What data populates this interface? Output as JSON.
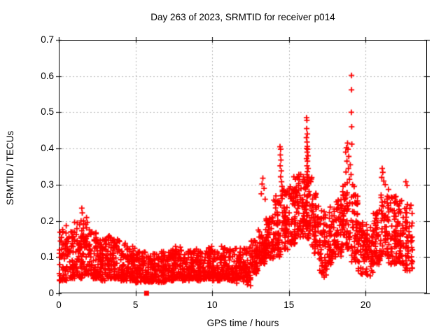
{
  "window": {
    "background": "#ffffff"
  },
  "chart_data": {
    "type": "scatter",
    "title": "Day 263 of 2023, SRMTID for receiver p014",
    "xlabel": "GPS time / hours",
    "ylabel": "SRMTID / TECUs",
    "xlim": [
      0,
      24
    ],
    "ylim": [
      0,
      0.7
    ],
    "xticks": [
      {
        "v": 0,
        "label": "0"
      },
      {
        "v": 5,
        "label": "5"
      },
      {
        "v": 10,
        "label": "10"
      },
      {
        "v": 15,
        "label": "15"
      },
      {
        "v": 20,
        "label": "20"
      }
    ],
    "yticks": [
      {
        "v": 0.0,
        "label": "0"
      },
      {
        "v": 0.1,
        "label": "0.1"
      },
      {
        "v": 0.2,
        "label": "0.2"
      },
      {
        "v": 0.3,
        "label": "0.3"
      },
      {
        "v": 0.4,
        "label": "0.4"
      },
      {
        "v": 0.5,
        "label": "0.5"
      },
      {
        "v": 0.6,
        "label": "0.6"
      },
      {
        "v": 0.7,
        "label": "0.7"
      }
    ],
    "grid": true,
    "grid_color": "#b4b4b4",
    "legend": "none",
    "marker": "plus",
    "marker_color": "#ff0000",
    "render_seed": 20230263,
    "bands": [
      {
        "t0": 0.0,
        "t1": 0.5,
        "lo": 0.035,
        "hi": 0.19,
        "n": 55
      },
      {
        "t0": 0.5,
        "t1": 1.0,
        "lo": 0.04,
        "hi": 0.17,
        "n": 55
      },
      {
        "t0": 1.0,
        "t1": 1.5,
        "lo": 0.04,
        "hi": 0.2,
        "n": 55
      },
      {
        "t0": 1.5,
        "t1": 2.0,
        "lo": 0.05,
        "hi": 0.21,
        "n": 55
      },
      {
        "t0": 2.0,
        "t1": 2.5,
        "lo": 0.04,
        "hi": 0.17,
        "n": 55
      },
      {
        "t0": 2.5,
        "t1": 3.0,
        "lo": 0.035,
        "hi": 0.15,
        "n": 55
      },
      {
        "t0": 3.0,
        "t1": 3.5,
        "lo": 0.04,
        "hi": 0.16,
        "n": 55
      },
      {
        "t0": 3.5,
        "t1": 4.0,
        "lo": 0.04,
        "hi": 0.15,
        "n": 55
      },
      {
        "t0": 4.0,
        "t1": 4.5,
        "lo": 0.035,
        "hi": 0.14,
        "n": 55
      },
      {
        "t0": 4.5,
        "t1": 5.0,
        "lo": 0.035,
        "hi": 0.13,
        "n": 55
      },
      {
        "t0": 5.0,
        "t1": 5.5,
        "lo": 0.03,
        "hi": 0.12,
        "n": 55
      },
      {
        "t0": 5.5,
        "t1": 6.0,
        "lo": 0.03,
        "hi": 0.115,
        "n": 55
      },
      {
        "t0": 6.0,
        "t1": 6.5,
        "lo": 0.03,
        "hi": 0.11,
        "n": 55
      },
      {
        "t0": 6.5,
        "t1": 7.0,
        "lo": 0.03,
        "hi": 0.115,
        "n": 55
      },
      {
        "t0": 7.0,
        "t1": 7.5,
        "lo": 0.035,
        "hi": 0.12,
        "n": 55
      },
      {
        "t0": 7.5,
        "t1": 8.0,
        "lo": 0.04,
        "hi": 0.13,
        "n": 55
      },
      {
        "t0": 8.0,
        "t1": 8.5,
        "lo": 0.035,
        "hi": 0.12,
        "n": 55
      },
      {
        "t0": 8.5,
        "t1": 9.0,
        "lo": 0.04,
        "hi": 0.125,
        "n": 55
      },
      {
        "t0": 9.0,
        "t1": 9.5,
        "lo": 0.035,
        "hi": 0.12,
        "n": 55
      },
      {
        "t0": 9.5,
        "t1": 10.0,
        "lo": 0.04,
        "hi": 0.13,
        "n": 55
      },
      {
        "t0": 10.0,
        "t1": 10.5,
        "lo": 0.035,
        "hi": 0.12,
        "n": 55
      },
      {
        "t0": 10.5,
        "t1": 11.0,
        "lo": 0.04,
        "hi": 0.13,
        "n": 55
      },
      {
        "t0": 11.0,
        "t1": 11.5,
        "lo": 0.035,
        "hi": 0.125,
        "n": 55
      },
      {
        "t0": 11.5,
        "t1": 12.0,
        "lo": 0.04,
        "hi": 0.13,
        "n": 55
      },
      {
        "t0": 12.0,
        "t1": 12.5,
        "lo": 0.03,
        "hi": 0.13,
        "n": 55
      },
      {
        "t0": 12.5,
        "t1": 13.0,
        "lo": 0.055,
        "hi": 0.15,
        "n": 55
      },
      {
        "t0": 13.0,
        "t1": 13.5,
        "lo": 0.08,
        "hi": 0.18,
        "n": 55,
        "p": 1.2
      },
      {
        "t0": 13.5,
        "t1": 14.0,
        "lo": 0.095,
        "hi": 0.21,
        "n": 55,
        "p": 1.2
      },
      {
        "t0": 14.0,
        "t1": 14.5,
        "lo": 0.1,
        "hi": 0.27,
        "n": 55,
        "p": 1.2
      },
      {
        "t0": 14.5,
        "t1": 15.0,
        "lo": 0.12,
        "hi": 0.29,
        "n": 55,
        "p": 1.2
      },
      {
        "t0": 15.0,
        "t1": 15.5,
        "lo": 0.13,
        "hi": 0.3,
        "n": 55,
        "p": 1.2
      },
      {
        "t0": 15.5,
        "t1": 16.0,
        "lo": 0.15,
        "hi": 0.33,
        "n": 55,
        "p": 1.2
      },
      {
        "t0": 16.0,
        "t1": 16.5,
        "lo": 0.15,
        "hi": 0.32,
        "n": 55,
        "p": 1.2
      },
      {
        "t0": 16.5,
        "t1": 17.0,
        "lo": 0.11,
        "hi": 0.28,
        "n": 55,
        "p": 1.2
      },
      {
        "t0": 17.0,
        "t1": 17.5,
        "lo": 0.05,
        "hi": 0.23,
        "n": 55,
        "p": 1.2
      },
      {
        "t0": 17.5,
        "t1": 18.0,
        "lo": 0.08,
        "hi": 0.24,
        "n": 55,
        "p": 1.2
      },
      {
        "t0": 18.0,
        "t1": 18.5,
        "lo": 0.1,
        "hi": 0.26,
        "n": 55,
        "p": 1.2
      },
      {
        "t0": 18.5,
        "t1": 19.0,
        "lo": 0.12,
        "hi": 0.3,
        "n": 55,
        "p": 1.2
      },
      {
        "t0": 19.0,
        "t1": 19.5,
        "lo": 0.08,
        "hi": 0.28,
        "n": 55,
        "p": 1.2
      },
      {
        "t0": 19.5,
        "t1": 20.0,
        "lo": 0.05,
        "hi": 0.21,
        "n": 50,
        "p": 1.2
      },
      {
        "t0": 20.0,
        "t1": 20.5,
        "lo": 0.045,
        "hi": 0.19,
        "n": 50,
        "p": 1.2
      },
      {
        "t0": 20.5,
        "t1": 21.0,
        "lo": 0.08,
        "hi": 0.23,
        "n": 55,
        "p": 1.2
      },
      {
        "t0": 21.0,
        "t1": 21.5,
        "lo": 0.1,
        "hi": 0.3,
        "n": 55,
        "p": 1.2
      },
      {
        "t0": 21.5,
        "t1": 22.0,
        "lo": 0.08,
        "hi": 0.27,
        "n": 55,
        "p": 1.2
      },
      {
        "t0": 22.0,
        "t1": 22.5,
        "lo": 0.08,
        "hi": 0.26,
        "n": 55,
        "p": 1.2
      },
      {
        "t0": 22.5,
        "t1": 23.05,
        "lo": 0.06,
        "hi": 0.25,
        "n": 55,
        "p": 1.2
      }
    ],
    "points": [
      [
        1.5,
        0.235
      ],
      [
        1.53,
        0.222
      ],
      [
        1.45,
        0.2
      ],
      [
        1.86,
        0.196
      ],
      [
        13.3,
        0.318
      ],
      [
        13.25,
        0.302
      ],
      [
        13.38,
        0.29
      ],
      [
        13.2,
        0.275
      ],
      [
        13.45,
        0.26
      ],
      [
        14.42,
        0.405
      ],
      [
        14.46,
        0.398
      ],
      [
        14.44,
        0.382
      ],
      [
        14.48,
        0.368
      ],
      [
        14.43,
        0.352
      ],
      [
        14.5,
        0.338
      ],
      [
        14.46,
        0.322
      ],
      [
        14.52,
        0.308
      ],
      [
        14.55,
        0.295
      ],
      [
        14.58,
        0.285
      ],
      [
        15.32,
        0.322
      ],
      [
        15.42,
        0.315
      ],
      [
        16.15,
        0.485
      ],
      [
        16.17,
        0.478
      ],
      [
        16.16,
        0.455
      ],
      [
        16.2,
        0.44
      ],
      [
        16.14,
        0.43
      ],
      [
        16.18,
        0.418
      ],
      [
        16.2,
        0.406
      ],
      [
        16.16,
        0.4
      ],
      [
        16.22,
        0.398
      ],
      [
        16.19,
        0.39
      ],
      [
        16.24,
        0.38
      ],
      [
        16.15,
        0.372
      ],
      [
        16.21,
        0.365
      ],
      [
        16.18,
        0.352
      ],
      [
        16.25,
        0.345
      ],
      [
        16.2,
        0.336
      ],
      [
        16.17,
        0.328
      ],
      [
        16.23,
        0.32
      ],
      [
        16.19,
        0.312
      ],
      [
        16.26,
        0.305
      ],
      [
        16.22,
        0.298
      ],
      [
        18.65,
        0.3
      ],
      [
        18.7,
        0.39
      ],
      [
        18.72,
        0.335
      ],
      [
        18.75,
        0.402
      ],
      [
        18.78,
        0.365
      ],
      [
        18.8,
        0.305
      ],
      [
        18.82,
        0.415
      ],
      [
        18.85,
        0.398
      ],
      [
        18.88,
        0.345
      ],
      [
        18.9,
        0.378
      ],
      [
        18.95,
        0.315
      ],
      [
        19.0,
        0.355
      ],
      [
        19.05,
        0.328
      ],
      [
        19.07,
        0.5
      ],
      [
        19.08,
        0.602
      ],
      [
        19.08,
        0.562
      ],
      [
        19.09,
        0.46
      ],
      [
        19.1,
        0.412
      ],
      [
        19.15,
        0.3
      ],
      [
        19.25,
        0.295
      ],
      [
        21.08,
        0.345
      ],
      [
        21.12,
        0.334
      ],
      [
        21.05,
        0.32
      ],
      [
        21.18,
        0.31
      ],
      [
        21.28,
        0.3
      ],
      [
        22.62,
        0.308
      ],
      [
        22.7,
        0.298
      ],
      [
        11.6,
        0.028
      ],
      [
        12.3,
        0.024
      ],
      [
        12.5,
        0.021
      ],
      [
        17.3,
        0.045
      ],
      [
        20.3,
        0.048
      ]
    ],
    "special_points": [
      {
        "x": 5.72,
        "y": 0.0,
        "marker": "filled-square"
      }
    ]
  }
}
